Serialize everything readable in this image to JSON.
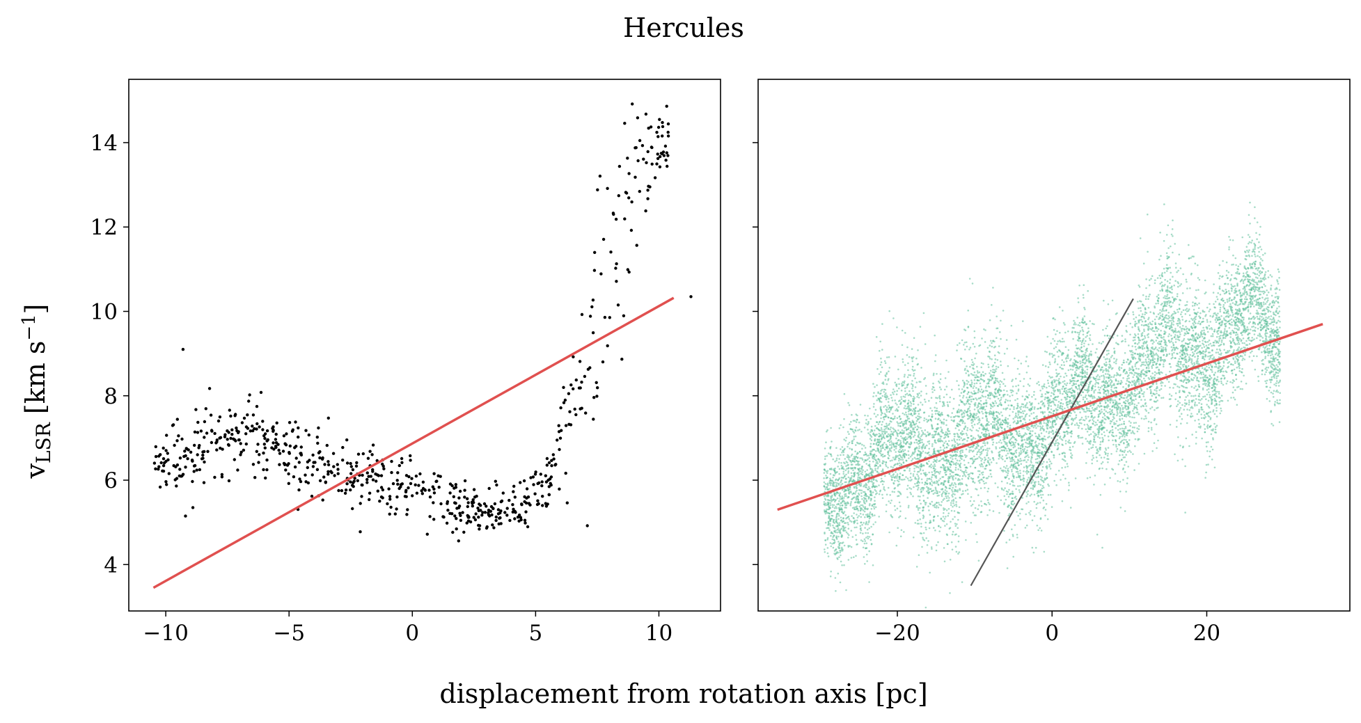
{
  "figure": {
    "title": "Hercules",
    "xlabel": "displacement from rotation axis [pc]",
    "ylabel_main": "v",
    "ylabel_sub": "LSR",
    "ylabel_unit": " [km s",
    "ylabel_exp": "−1",
    "ylabel_close": "]"
  },
  "chart_data": [
    {
      "type": "scatter",
      "panel": "left",
      "xlim": [
        -11.5,
        12.5
      ],
      "ylim": [
        2.9,
        15.5
      ],
      "xticks": [
        -10,
        -5,
        0,
        5,
        10
      ],
      "xtick_labels": [
        "−10",
        "−5",
        "0",
        "5",
        "10"
      ],
      "yticks": [
        4,
        6,
        8,
        10,
        12,
        14
      ],
      "ytick_labels": [
        "4",
        "6",
        "8",
        "10",
        "12",
        "14"
      ],
      "point_color": "#000000",
      "line_color": "#e0504f",
      "fit_line": [
        [
          -10.5,
          3.45
        ],
        [
          10.6,
          10.32
        ]
      ],
      "outliers": [
        [
          -9.3,
          9.1
        ],
        [
          11.3,
          10.35
        ],
        [
          -9.2,
          5.15
        ],
        [
          -8.9,
          5.35
        ]
      ],
      "trend": [
        [
          -10.5,
          6.5,
          0.3
        ],
        [
          -9.5,
          6.6,
          0.35
        ],
        [
          -8.5,
          6.8,
          0.4
        ],
        [
          -7.5,
          7.0,
          0.4
        ],
        [
          -6.5,
          7.0,
          0.45
        ],
        [
          -5.5,
          6.8,
          0.45
        ],
        [
          -4.5,
          6.5,
          0.45
        ],
        [
          -3.5,
          6.3,
          0.4
        ],
        [
          -2.5,
          6.1,
          0.4
        ],
        [
          -1.5,
          6.0,
          0.35
        ],
        [
          -0.5,
          5.9,
          0.35
        ],
        [
          0.5,
          5.75,
          0.35
        ],
        [
          1.5,
          5.45,
          0.3
        ],
        [
          2.5,
          5.3,
          0.3
        ],
        [
          3.5,
          5.25,
          0.3
        ],
        [
          4.5,
          5.45,
          0.3
        ],
        [
          5.3,
          5.8,
          0.35
        ],
        [
          5.8,
          6.4,
          0.5
        ],
        [
          6.3,
          7.3,
          0.8
        ],
        [
          6.8,
          8.3,
          1.0
        ],
        [
          7.3,
          9.2,
          1.2
        ],
        [
          7.8,
          10.5,
          1.4
        ],
        [
          8.3,
          11.8,
          1.3
        ],
        [
          8.8,
          12.9,
          1.1
        ],
        [
          9.3,
          13.6,
          0.8
        ],
        [
          9.8,
          14.0,
          0.5
        ],
        [
          10.4,
          14.1,
          0.4
        ]
      ],
      "trend_n": 700
    },
    {
      "type": "scatter",
      "panel": "right",
      "xlim": [
        -38.0,
        38.5
      ],
      "ylim": [
        2.9,
        15.5
      ],
      "xticks": [
        -20,
        0,
        20
      ],
      "xtick_labels": [
        "−20",
        "0",
        "20"
      ],
      "yticks": [
        4,
        6,
        8,
        10,
        12,
        14
      ],
      "point_color": "#5fbf9a",
      "line_color": "#e0504f",
      "ref_line_color": "#555555",
      "fit_line": [
        [
          -35.5,
          5.3
        ],
        [
          35.0,
          9.7
        ]
      ],
      "ref_line": [
        [
          -10.5,
          3.5
        ],
        [
          10.5,
          10.3
        ]
      ],
      "trend": [
        [
          -29.5,
          5.0,
          0.6
        ],
        [
          -27.0,
          6.2,
          0.8
        ],
        [
          -24.0,
          6.5,
          0.8
        ],
        [
          -20.0,
          6.6,
          0.9
        ],
        [
          -16.0,
          6.9,
          1.0
        ],
        [
          -12.0,
          7.0,
          0.9
        ],
        [
          -8.0,
          6.9,
          1.0
        ],
        [
          -4.0,
          7.2,
          0.9
        ],
        [
          0.0,
          7.4,
          0.8
        ],
        [
          4.0,
          7.8,
          0.8
        ],
        [
          8.0,
          8.3,
          0.8
        ],
        [
          12.0,
          8.7,
          0.9
        ],
        [
          16.0,
          9.0,
          0.9
        ],
        [
          20.0,
          9.3,
          0.9
        ],
        [
          24.0,
          9.6,
          0.8
        ],
        [
          27.0,
          9.7,
          0.7
        ],
        [
          29.5,
          9.2,
          0.8
        ]
      ],
      "trend_n": 9000
    }
  ]
}
